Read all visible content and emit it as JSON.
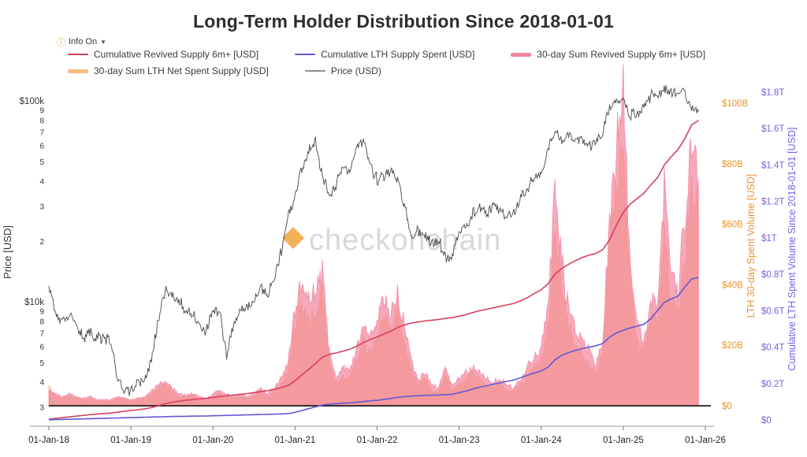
{
  "header": {
    "title": "Long-Term Holder Distribution Since 2018-01-01",
    "info_label": "Info On",
    "info_caret": "▼"
  },
  "watermark": {
    "text": "checkonchain",
    "mark_color": "#f0a33c",
    "text_color": "#d8d8d8"
  },
  "legend": {
    "rows": [
      [
        0,
        1,
        2
      ],
      [
        3,
        4
      ]
    ],
    "items": [
      {
        "label": "Cumulative Revived Supply 6m+ [USD]",
        "color": "#d64060",
        "kind": "line"
      },
      {
        "label": "Cumulative LTH Supply Spent [USD]",
        "color": "#6457d6",
        "kind": "line"
      },
      {
        "label": "30-day Sum Revived Supply 6m+ [USD]",
        "color": "#f2849e",
        "kind": "area"
      },
      {
        "label": "30-day Sum LTH Net Spent Supply [USD]",
        "color": "#f6bb83",
        "kind": "area"
      },
      {
        "label": "Price (USD)",
        "color": "#8f8f8f",
        "kind": "line"
      }
    ]
  },
  "chart_data": {
    "type": "line",
    "title": "Long-Term Holder Distribution Since 2018-01-01",
    "x_unit": "decimal_year",
    "x_start_decimal_year": 2018.0,
    "x_step_months": 1,
    "x_range": [
      2018,
      2026
    ],
    "x_ticks": [
      {
        "year": 2018,
        "label": "01-Jan-18"
      },
      {
        "year": 2019,
        "label": "01-Jan-19"
      },
      {
        "year": 2020,
        "label": "01-Jan-20"
      },
      {
        "year": 2021,
        "label": "01-Jan-21"
      },
      {
        "year": 2022,
        "label": "01-Jan-22"
      },
      {
        "year": 2023,
        "label": "01-Jan-23"
      },
      {
        "year": 2024,
        "label": "01-Jan-24"
      },
      {
        "year": 2025,
        "label": "01-Jan-25"
      },
      {
        "year": 2026,
        "label": "01-Jan-26"
      }
    ],
    "axes": {
      "price_axis": {
        "title": "Price [USD]",
        "scale": "log",
        "color": "#3c3c3c",
        "ticks": [
          {
            "value": 100000,
            "label": "$100k"
          },
          {
            "value": 90000,
            "label": "9"
          },
          {
            "value": 80000,
            "label": "8"
          },
          {
            "value": 70000,
            "label": "7"
          },
          {
            "value": 60000,
            "label": "6"
          },
          {
            "value": 50000,
            "label": "5"
          },
          {
            "value": 40000,
            "label": "4"
          },
          {
            "value": 30000,
            "label": "3"
          },
          {
            "value": 20000,
            "label": "2"
          },
          {
            "value": 10000,
            "label": "$10k"
          },
          {
            "value": 9000,
            "label": "9"
          },
          {
            "value": 8000,
            "label": "8"
          },
          {
            "value": 7000,
            "label": "7"
          },
          {
            "value": 6000,
            "label": "6"
          },
          {
            "value": 5000,
            "label": "5"
          },
          {
            "value": 4000,
            "label": "4"
          },
          {
            "value": 3000,
            "label": "3"
          }
        ]
      },
      "spent_axis": {
        "title": "LTH 30-day Spent Volume [USD]",
        "scale": "linear",
        "color": "#e8962f",
        "unit": "$B",
        "ticks": [
          {
            "value": 0,
            "label": "$0"
          },
          {
            "value": 20,
            "label": "$20B"
          },
          {
            "value": 40,
            "label": "$40B"
          },
          {
            "value": 60,
            "label": "$60B"
          },
          {
            "value": 80,
            "label": "$80B"
          },
          {
            "value": 100,
            "label": "$100B"
          }
        ]
      },
      "cumulative_axis": {
        "title": "Cumulative LTH Spent Volume Since 2018-01-01 [USD]",
        "scale": "linear",
        "color": "#7d5ce6",
        "unit": "$T",
        "ticks": [
          {
            "value": 0,
            "label": "$0"
          },
          {
            "value": 0.2,
            "label": "$0.2T"
          },
          {
            "value": 0.4,
            "label": "$0.4T"
          },
          {
            "value": 0.6,
            "label": "$0.6T"
          },
          {
            "value": 0.8,
            "label": "$0.8T"
          },
          {
            "value": 1.0,
            "label": "$1T"
          },
          {
            "value": 1.2,
            "label": "$1.2T"
          },
          {
            "value": 1.4,
            "label": "$1.4T"
          },
          {
            "value": 1.6,
            "label": "$1.6T"
          },
          {
            "value": 1.8,
            "label": "$1.8T"
          }
        ]
      }
    },
    "draw_order": [
      3,
      2,
      4,
      0,
      1
    ],
    "series": [
      {
        "name": "Cumulative Revived Supply 6m+ [USD]",
        "axis": "cumulative_axis",
        "render": "line",
        "color": "#d64060",
        "width": 1.6,
        "values": [
          0.004,
          0.009,
          0.013,
          0.017,
          0.021,
          0.025,
          0.029,
          0.032,
          0.035,
          0.038,
          0.043,
          0.048,
          0.052,
          0.056,
          0.061,
          0.068,
          0.078,
          0.089,
          0.097,
          0.103,
          0.108,
          0.112,
          0.116,
          0.119,
          0.124,
          0.129,
          0.133,
          0.137,
          0.141,
          0.145,
          0.15,
          0.156,
          0.161,
          0.168,
          0.178,
          0.19,
          0.215,
          0.248,
          0.278,
          0.31,
          0.345,
          0.36,
          0.368,
          0.378,
          0.388,
          0.405,
          0.425,
          0.442,
          0.455,
          0.472,
          0.488,
          0.508,
          0.522,
          0.532,
          0.538,
          0.544,
          0.548,
          0.552,
          0.558,
          0.562,
          0.57,
          0.578,
          0.59,
          0.6,
          0.608,
          0.616,
          0.624,
          0.632,
          0.64,
          0.655,
          0.672,
          0.695,
          0.715,
          0.748,
          0.8,
          0.832,
          0.855,
          0.875,
          0.892,
          0.905,
          0.915,
          0.935,
          0.99,
          1.07,
          1.14,
          1.185,
          1.215,
          1.245,
          1.29,
          1.33,
          1.4,
          1.445,
          1.485,
          1.545,
          1.62,
          1.645
        ]
      },
      {
        "name": "Cumulative LTH Supply Spent [USD]",
        "axis": "cumulative_axis",
        "render": "line",
        "color": "#6457d6",
        "width": 1.6,
        "values": [
          0.001,
          0.002,
          0.003,
          0.004,
          0.005,
          0.006,
          0.007,
          0.008,
          0.009,
          0.01,
          0.011,
          0.012,
          0.013,
          0.014,
          0.015,
          0.016,
          0.017,
          0.018,
          0.019,
          0.02,
          0.02,
          0.021,
          0.021,
          0.022,
          0.023,
          0.024,
          0.025,
          0.026,
          0.027,
          0.028,
          0.029,
          0.03,
          0.031,
          0.032,
          0.033,
          0.035,
          0.042,
          0.052,
          0.062,
          0.072,
          0.082,
          0.087,
          0.089,
          0.092,
          0.094,
          0.097,
          0.101,
          0.105,
          0.108,
          0.113,
          0.118,
          0.124,
          0.128,
          0.131,
          0.133,
          0.135,
          0.136,
          0.137,
          0.139,
          0.141,
          0.15,
          0.158,
          0.17,
          0.18,
          0.188,
          0.196,
          0.204,
          0.212,
          0.22,
          0.232,
          0.246,
          0.258,
          0.27,
          0.29,
          0.33,
          0.355,
          0.37,
          0.382,
          0.392,
          0.4,
          0.407,
          0.42,
          0.455,
          0.478,
          0.492,
          0.505,
          0.515,
          0.525,
          0.555,
          0.6,
          0.645,
          0.665,
          0.68,
          0.73,
          0.775,
          0.782
        ]
      },
      {
        "name": "30-day Sum Revived Supply 6m+ [USD]",
        "axis": "spent_axis",
        "render": "area",
        "color": "#f2849e",
        "opacity": 0.7,
        "values": [
          5,
          4,
          3,
          4,
          3,
          2.5,
          3,
          2,
          2,
          2,
          3,
          2.5,
          2,
          2.5,
          3,
          5,
          7,
          8,
          6,
          4,
          3.5,
          4,
          3,
          2.5,
          4,
          5,
          4,
          3,
          4,
          3,
          4,
          6,
          4,
          6,
          9,
          14,
          32,
          40,
          34,
          38,
          44,
          18,
          9,
          13,
          11,
          19,
          26,
          22,
          28,
          36,
          30,
          38,
          26,
          15,
          9,
          11,
          7,
          6,
          13,
          7,
          9,
          11,
          13,
          11,
          9,
          8,
          9,
          7,
          6,
          9,
          13,
          16,
          19,
          32,
          70,
          48,
          32,
          26,
          21,
          18,
          13,
          22,
          62,
          85,
          102,
          48,
          28,
          22,
          36,
          32,
          73,
          42,
          38,
          62,
          88,
          75
        ]
      },
      {
        "name": "30-day Sum LTH Net Spent Supply [USD]",
        "axis": "spent_axis",
        "render": "area",
        "color": "#f6bb83",
        "opacity": 0.8,
        "values": [
          6,
          3,
          2.5,
          3,
          2.5,
          2,
          2.5,
          1.5,
          1.5,
          1.5,
          2.5,
          2,
          1.5,
          2,
          2.5,
          4,
          6,
          7,
          5,
          3,
          3,
          3.5,
          2.5,
          2,
          3,
          4,
          3,
          2.5,
          3,
          2.5,
          3,
          5,
          3,
          5,
          7,
          11,
          26,
          34,
          28,
          31,
          38,
          14,
          7,
          10,
          9,
          15,
          21,
          17,
          23,
          30,
          25,
          32,
          21,
          12,
          7,
          9,
          5,
          5,
          10,
          5,
          7,
          9,
          11,
          9,
          7,
          6,
          7,
          5,
          5,
          7,
          10,
          13,
          15,
          26,
          58,
          40,
          26,
          21,
          17,
          14,
          10,
          18,
          52,
          72,
          88,
          40,
          22,
          18,
          30,
          26,
          60,
          34,
          30,
          50,
          74,
          62
        ]
      },
      {
        "name": "Price (USD)",
        "axis": "price_axis",
        "render": "line",
        "color": "#3a3a3a",
        "width": 0.9,
        "values": [
          12500,
          8800,
          7800,
          8900,
          8000,
          6500,
          7200,
          6600,
          6500,
          6400,
          4300,
          3500,
          3600,
          3900,
          4000,
          5200,
          8200,
          11500,
          10500,
          10200,
          8900,
          8800,
          7600,
          7200,
          9200,
          8800,
          5500,
          7600,
          9200,
          9400,
          10200,
          11600,
          10700,
          13200,
          17800,
          27000,
          33000,
          46000,
          58000,
          62000,
          42000,
          34000,
          38000,
          47000,
          45000,
          58000,
          64000,
          48000,
          40000,
          42500,
          45000,
          40000,
          30500,
          20000,
          22500,
          21500,
          19500,
          20000,
          16800,
          16600,
          22500,
          23500,
          27500,
          29000,
          27500,
          29500,
          29500,
          26500,
          27000,
          33500,
          37000,
          42500,
          43000,
          58000,
          70000,
          64000,
          67000,
          63000,
          64000,
          60000,
          63000,
          69000,
          94000,
          97000,
          103000,
          86000,
          84000,
          93000,
          106000,
          107000,
          116000,
          110000,
          113000,
          109000,
          91000,
          88000
        ]
      }
    ]
  }
}
